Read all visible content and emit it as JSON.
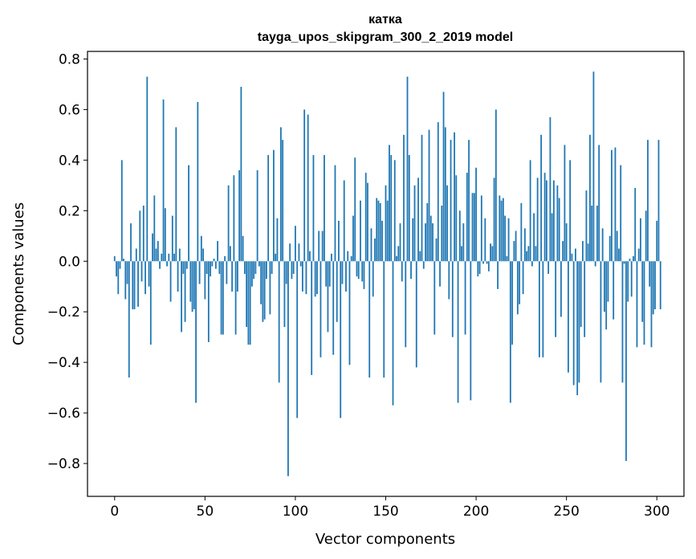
{
  "chart_data": {
    "type": "bar",
    "title": "катка",
    "subtitle": "tayga_upos_skipgram_300_2_2019 model",
    "xlabel": "Vector components",
    "ylabel": "Components values",
    "xlim": [
      -15,
      315
    ],
    "ylim": [
      -0.93,
      0.83
    ],
    "xticks": [
      0,
      50,
      100,
      150,
      200,
      250,
      300
    ],
    "xtick_labels": [
      "0",
      "50",
      "100",
      "150",
      "200",
      "250",
      "300"
    ],
    "yticks": [
      -0.8,
      -0.6,
      -0.4,
      -0.2,
      0.0,
      0.2,
      0.4,
      0.6,
      0.8
    ],
    "ytick_labels": [
      "−0.8",
      "−0.6",
      "−0.4",
      "−0.2",
      "0.0",
      "0.2",
      "0.4",
      "0.6",
      "0.8"
    ],
    "bar_color": "#1f77b4",
    "values": [
      0.02,
      -0.06,
      -0.13,
      -0.03,
      0.4,
      0.01,
      -0.15,
      -0.09,
      -0.46,
      0.15,
      -0.19,
      -0.19,
      0.05,
      -0.18,
      0.2,
      -0.08,
      0.22,
      -0.13,
      0.73,
      -0.1,
      -0.33,
      0.11,
      0.26,
      0.05,
      0.08,
      -0.03,
      0.03,
      0.64,
      0.21,
      -0.02,
      0.03,
      -0.16,
      0.18,
      0.03,
      0.53,
      -0.12,
      0.05,
      -0.28,
      -0.05,
      -0.24,
      -0.03,
      0.38,
      -0.16,
      -0.2,
      -0.19,
      -0.56,
      0.63,
      -0.09,
      0.1,
      0.05,
      -0.15,
      -0.05,
      -0.32,
      -0.06,
      -0.02,
      0.01,
      -0.03,
      0.08,
      -0.05,
      -0.29,
      -0.29,
      0.02,
      -0.09,
      0.3,
      0.06,
      -0.12,
      0.34,
      -0.29,
      -0.12,
      0.36,
      0.69,
      0.1,
      -0.05,
      -0.26,
      -0.33,
      -0.33,
      -0.1,
      -0.07,
      -0.05,
      0.36,
      -0.02,
      -0.17,
      -0.24,
      -0.23,
      -0.07,
      0.42,
      -0.21,
      -0.05,
      0.44,
      0.03,
      0.17,
      -0.48,
      0.53,
      0.48,
      -0.26,
      -0.09,
      -0.85,
      0.07,
      -0.07,
      -0.05,
      0.14,
      -0.62,
      0.07,
      -0.02,
      -0.12,
      0.6,
      -0.13,
      0.58,
      0.04,
      -0.45,
      0.42,
      -0.14,
      -0.13,
      0.12,
      -0.38,
      0.12,
      0.42,
      -0.1,
      -0.28,
      -0.1,
      0.03,
      -0.37,
      0.38,
      -0.24,
      0.16,
      -0.62,
      -0.09,
      0.32,
      -0.12,
      0.04,
      -0.41,
      0.02,
      0.18,
      0.41,
      -0.06,
      -0.07,
      0.24,
      -0.08,
      -0.11,
      0.35,
      0.31,
      -0.46,
      0.13,
      -0.14,
      0.09,
      0.25,
      0.24,
      0.23,
      0.16,
      -0.46,
      0.3,
      0.24,
      0.46,
      0.42,
      -0.57,
      0.4,
      0.02,
      0.06,
      0.15,
      -0.08,
      0.5,
      -0.34,
      0.73,
      0.42,
      -0.07,
      0.17,
      0.3,
      -0.42,
      0.33,
      0.04,
      0.5,
      -0.03,
      0.15,
      0.23,
      0.52,
      0.18,
      0.15,
      -0.29,
      0.09,
      0.55,
      -0.1,
      0.22,
      0.67,
      0.53,
      0.3,
      -0.15,
      0.48,
      -0.3,
      0.51,
      0.34,
      -0.56,
      0.2,
      0.06,
      0.15,
      -0.29,
      0.35,
      0.48,
      -0.55,
      0.27,
      0.27,
      0.37,
      -0.06,
      -0.05,
      0.26,
      -0.01,
      0.17,
      -0.01,
      -0.04,
      0.07,
      0.06,
      0.33,
      0.6,
      -0.11,
      0.26,
      0.24,
      0.25,
      0.18,
      0.02,
      0.17,
      -0.56,
      -0.33,
      0.08,
      0.12,
      -0.21,
      -0.17,
      0.23,
      -0.13,
      0.13,
      0.04,
      0.06,
      0.4,
      -0.02,
      0.19,
      0.06,
      0.33,
      -0.38,
      0.5,
      -0.38,
      0.35,
      0.32,
      -0.05,
      0.57,
      0.19,
      0.32,
      -0.3,
      0.3,
      0.25,
      -0.22,
      0.08,
      0.46,
      0.15,
      -0.44,
      0.4,
      0.03,
      -0.49,
      0.05,
      -0.53,
      -0.48,
      -0.26,
      0.08,
      -0.3,
      0.28,
      0.07,
      0.5,
      0.22,
      0.75,
      -0.02,
      0.22,
      0.46,
      -0.48,
      0.13,
      -0.2,
      -0.27,
      -0.16,
      0.1,
      0.44,
      -0.23,
      0.45,
      0.12,
      0.05,
      0.38,
      -0.48,
      -0.01,
      -0.79,
      -0.16,
      0.01,
      -0.14,
      0.02,
      0.29,
      -0.34,
      0.05,
      0.17,
      -0.24,
      -0.33,
      0.2,
      0.48,
      -0.1,
      -0.34,
      -0.21,
      -0.19,
      0.16,
      0.48,
      -0.19
    ]
  }
}
